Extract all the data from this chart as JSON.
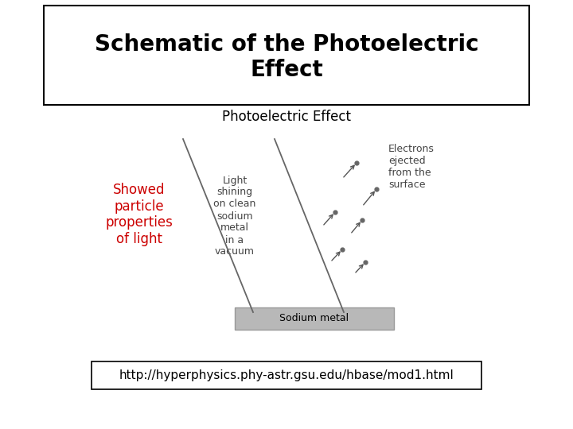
{
  "title": "Schematic of the Photoelectric\nEffect",
  "title_fontsize": 20,
  "title_fontweight": "bold",
  "bg_color": "#ffffff",
  "border_color": "#000000",
  "url_text": "http://hyperphysics.phy-astr.gsu.edu/hbase/mod1.html",
  "url_fontsize": 11,
  "photoelectric_label": "Photoelectric Effect",
  "photoelectric_fontsize": 12,
  "showed_text": "Showed\nparticle\nproperties\nof light",
  "showed_color": "#cc0000",
  "showed_fontsize": 12,
  "light_text": "Light\nshining\non clean\nsodium\nmetal\nin a\nvacuum",
  "light_fontsize": 9,
  "electrons_label": "Electrons\nejected\nfrom the\nsurface",
  "electrons_fontsize": 9,
  "sodium_text": "Sodium metal",
  "sodium_fontsize": 9,
  "sodium_bg": "#b8b8b8",
  "line_color": "#666666",
  "electron_color": "#666666",
  "arrow_color": "#555555",
  "text_color_dark": "#444444"
}
